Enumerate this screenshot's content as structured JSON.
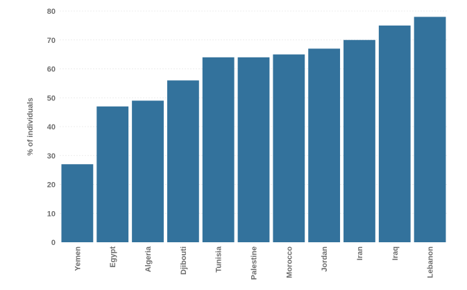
{
  "chart_data": {
    "type": "bar",
    "title": "",
    "xlabel": "",
    "ylabel": "% of individuals",
    "ylim": [
      0,
      80
    ],
    "yticks": [
      0,
      10,
      20,
      30,
      40,
      50,
      60,
      70,
      80
    ],
    "grid": true,
    "bar_color": "#33729c",
    "categories": [
      "Yemen",
      "Egypt",
      "Algeria",
      "Djibouti",
      "Tunisia",
      "Palestine",
      "Morocco",
      "Jordan",
      "Iran",
      "Iraq",
      "Lebanon"
    ],
    "values": [
      27,
      47,
      49,
      56,
      64,
      64,
      65,
      67,
      70,
      75,
      78
    ]
  }
}
